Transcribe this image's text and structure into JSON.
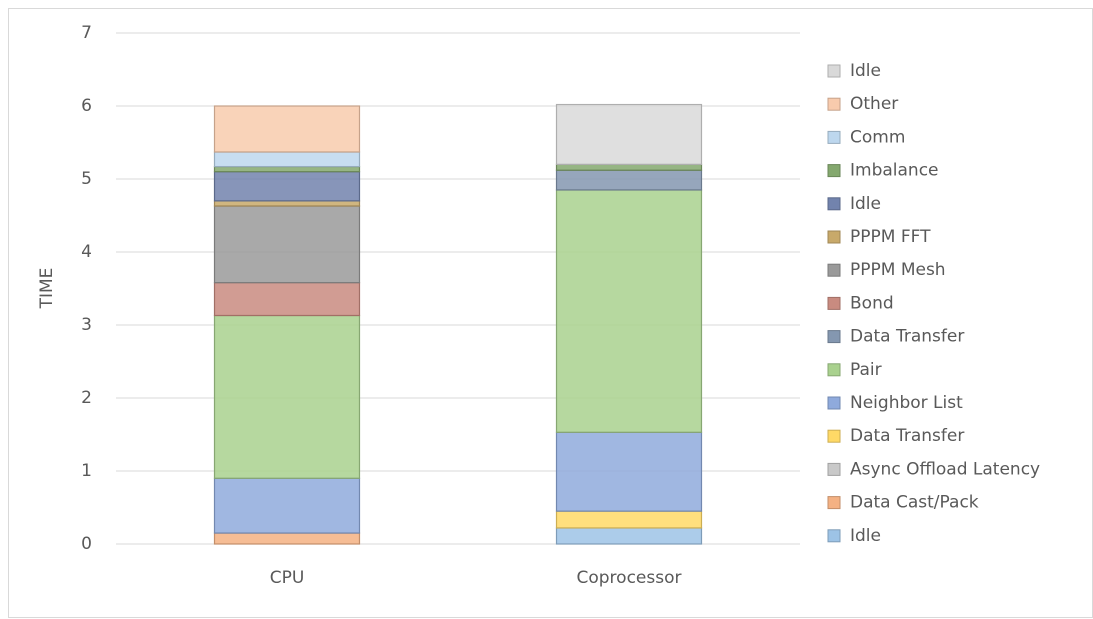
{
  "chart_data": {
    "type": "stacked_bar",
    "y_label": "TIME",
    "categories": [
      "CPU",
      "Coprocessor"
    ],
    "ylim": [
      0,
      7
    ],
    "yticks": [
      0,
      1,
      2,
      3,
      4,
      5,
      6,
      7
    ],
    "grid": true,
    "legend": "right",
    "series": [
      {
        "name": "Idle",
        "color": "#9dc3e6",
        "values": [
          0,
          0.22
        ]
      },
      {
        "name": "Data Cast/Pack",
        "color": "#f4b183",
        "values": [
          0.15,
          0
        ]
      },
      {
        "name": "Async Offload Latency",
        "color": "#c9c9c9",
        "values": [
          0,
          0
        ]
      },
      {
        "name": "Data Transfer",
        "color": "#ffd966",
        "values": [
          0,
          0.23
        ]
      },
      {
        "name": "Neighbor List",
        "color": "#8faadc",
        "values": [
          0.75,
          1.08
        ]
      },
      {
        "name": "Pair",
        "color": "#a9d18e",
        "values": [
          2.23,
          3.32
        ]
      },
      {
        "name": "Data Transfer",
        "color": "#8497b0",
        "values": [
          0,
          0.27
        ]
      },
      {
        "name": "Bond",
        "color": "#c98b80",
        "values": [
          0.45,
          0
        ]
      },
      {
        "name": "PPPM Mesh",
        "color": "#9a9a9a",
        "values": [
          1.05,
          0
        ]
      },
      {
        "name": "PPPM FFT",
        "color": "#c8a96a",
        "values": [
          0.07,
          0
        ]
      },
      {
        "name": "Idle",
        "color": "#7283ad",
        "values": [
          0.4,
          0
        ]
      },
      {
        "name": "Imbalance",
        "color": "#84a86e",
        "values": [
          0.07,
          0.08
        ]
      },
      {
        "name": "Comm",
        "color": "#bdd7ee",
        "values": [
          0.2,
          0
        ]
      },
      {
        "name": "Other",
        "color": "#f8cbad",
        "values": [
          0.63,
          0
        ]
      },
      {
        "name": "Idle",
        "color": "#d9d9d9",
        "values": [
          0,
          0.82
        ]
      }
    ]
  }
}
